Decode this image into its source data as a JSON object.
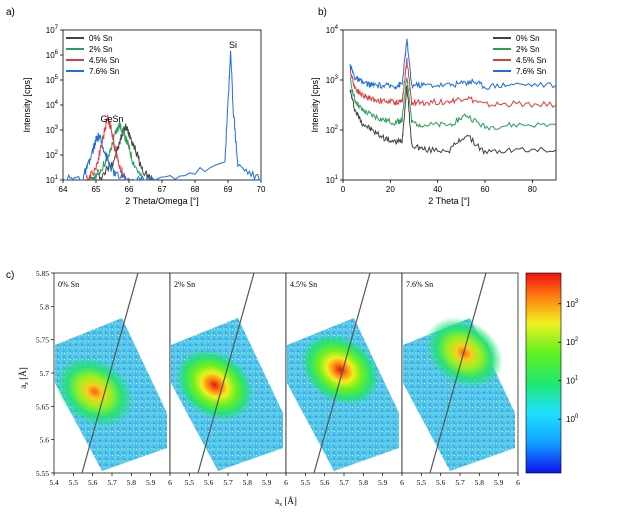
{
  "panel_labels": {
    "a": "a)",
    "b": "b)",
    "c": "c)"
  },
  "series_colors": [
    "#444444",
    "#2aa058",
    "#e03c3c",
    "#1f6fe0"
  ],
  "chart_data": [
    {
      "id": "a",
      "type": "line",
      "xlabel": "2 Theta/Omega [°]",
      "ylabel": "Intensity [cps]",
      "xlim": [
        64,
        70
      ],
      "ylim_log10": [
        1,
        7
      ],
      "yscale": "log",
      "x_ticks": [
        "64",
        "65",
        "66",
        "67",
        "68",
        "69",
        "70"
      ],
      "y_ticks": [
        {
          "base": "10",
          "exp": "1"
        },
        {
          "base": "10",
          "exp": "2"
        },
        {
          "base": "10",
          "exp": "3"
        },
        {
          "base": "10",
          "exp": "4"
        },
        {
          "base": "10",
          "exp": "5"
        },
        {
          "base": "10",
          "exp": "6"
        },
        {
          "base": "10",
          "exp": "7"
        }
      ],
      "legend": [
        "0% Sn",
        "2% Sn",
        "4.5% Sn",
        "7.6% Sn"
      ],
      "legend_position": "top-left",
      "annotations": [
        "GeSn",
        "Si"
      ],
      "series": [
        {
          "name": "0% Sn",
          "x": [
            64.8,
            65.2,
            65.5,
            65.7,
            65.8,
            65.9,
            66.0,
            66.2,
            66.4,
            66.7
          ],
          "log10_y": [
            1.0,
            1.2,
            1.7,
            2.4,
            2.9,
            3.1,
            2.9,
            2.2,
            1.4,
            1.0
          ]
        },
        {
          "name": "2% Sn",
          "x": [
            64.8,
            65.1,
            65.4,
            65.6,
            65.7,
            65.8,
            65.95,
            66.1,
            66.4
          ],
          "log10_y": [
            1.0,
            1.3,
            2.0,
            2.9,
            3.2,
            3.0,
            2.5,
            1.8,
            1.0
          ]
        },
        {
          "name": "4.5% Sn",
          "x": [
            64.7,
            65.0,
            65.2,
            65.35,
            65.45,
            65.55,
            65.7,
            65.9
          ],
          "log10_y": [
            1.0,
            1.5,
            2.6,
            3.5,
            3.1,
            2.4,
            1.6,
            1.0
          ]
        },
        {
          "name": "7.6% Sn",
          "x": [
            64.0,
            64.6,
            64.8,
            65.0,
            65.1,
            65.2,
            65.4,
            65.6,
            66.0,
            66.8,
            68.9,
            69.02,
            69.08,
            69.15,
            69.3,
            70.0
          ],
          "log10_y": [
            1.0,
            1.1,
            1.7,
            2.6,
            2.75,
            2.4,
            1.6,
            1.2,
            1.0,
            1.0,
            1.6,
            4.6,
            6.2,
            4.0,
            1.6,
            1.0
          ]
        }
      ]
    },
    {
      "id": "b",
      "type": "line",
      "xlabel": "2 Theta [°]",
      "ylabel": "Intensity [cps]",
      "xlim": [
        0,
        90
      ],
      "ylim_log10": [
        1,
        4
      ],
      "yscale": "log",
      "x_ticks": [
        "0",
        "20",
        "40",
        "60",
        "80"
      ],
      "y_ticks": [
        {
          "base": "10",
          "exp": "1"
        },
        {
          "base": "10",
          "exp": "2"
        },
        {
          "base": "10",
          "exp": "3"
        },
        {
          "base": "10",
          "exp": "4"
        }
      ],
      "legend": [
        "0% Sn",
        "2% Sn",
        "4.5% Sn",
        "7.6% Sn"
      ],
      "legend_position": "top-right",
      "series": [
        {
          "name": "0% Sn",
          "x": [
            3,
            5,
            8,
            12,
            17,
            22,
            25,
            27,
            29,
            35,
            45,
            52,
            60,
            72,
            90
          ],
          "log10_y": [
            2.8,
            2.4,
            2.15,
            2.0,
            1.85,
            1.75,
            1.8,
            2.9,
            1.7,
            1.6,
            1.6,
            1.9,
            1.55,
            1.6,
            1.6
          ]
        },
        {
          "name": "2% Sn",
          "x": [
            3,
            5,
            8,
            12,
            17,
            22,
            25,
            27,
            29,
            35,
            45,
            52,
            60,
            72,
            90
          ],
          "log10_y": [
            3.0,
            2.6,
            2.4,
            2.3,
            2.2,
            2.15,
            2.2,
            3.1,
            2.15,
            2.1,
            2.1,
            2.3,
            2.05,
            2.1,
            2.1
          ]
        },
        {
          "name": "4.5% Sn",
          "x": [
            3,
            5,
            8,
            12,
            17,
            22,
            25,
            27,
            29,
            35,
            45,
            52,
            60,
            72,
            90
          ],
          "log10_y": [
            3.2,
            2.85,
            2.7,
            2.62,
            2.58,
            2.55,
            2.58,
            3.4,
            2.55,
            2.55,
            2.57,
            2.65,
            2.5,
            2.52,
            2.5
          ]
        },
        {
          "name": "7.6% Sn",
          "x": [
            3,
            5,
            8,
            12,
            17,
            22,
            25,
            27,
            29,
            35,
            45,
            52,
            55,
            60,
            72,
            90
          ],
          "log10_y": [
            3.3,
            3.05,
            2.95,
            2.9,
            2.88,
            2.88,
            2.92,
            3.8,
            2.9,
            2.9,
            2.9,
            2.95,
            2.98,
            2.87,
            2.92,
            2.9
          ]
        }
      ]
    },
    {
      "id": "c",
      "type": "heatmap",
      "xlabel_base": "a",
      "xlabel_sub": "x",
      "xlabel_unit": " [Å]",
      "ylabel_base": "a",
      "ylabel_sub": "z",
      "ylabel_unit": " [Å]",
      "colorbar_scale": "log",
      "colorbar_ticks": [
        {
          "base": "10",
          "exp": "3"
        },
        {
          "base": "10",
          "exp": "2"
        },
        {
          "base": "10",
          "exp": "1"
        },
        {
          "base": "10",
          "exp": "0"
        }
      ],
      "y_ticks": [
        "5.85",
        "5.8",
        "5.75",
        "5.7",
        "5.65",
        "5.6",
        "5.55"
      ],
      "ylim": [
        5.55,
        5.85
      ],
      "panels": [
        {
          "label": "0% Sn",
          "x_ticks": [
            "5.4",
            "5.5",
            "5.6",
            "5.7",
            "5.8",
            "5.9"
          ],
          "xlim": [
            5.4,
            6.0
          ],
          "peak_center": [
            5.61,
            5.672
          ],
          "peak_log10_intensity": 3.0
        },
        {
          "label": "2% Sn",
          "x_ticks": [
            "6",
            "5.5",
            "5.6",
            "5.7",
            "5.8",
            "5.9"
          ],
          "xlim": [
            5.4,
            6.0
          ],
          "peak_center": [
            5.63,
            5.682
          ],
          "peak_log10_intensity": 3.4
        },
        {
          "label": "4.5% Sn",
          "x_ticks": [
            "6",
            "5.5",
            "5.6",
            "5.7",
            "5.8",
            "5.9"
          ],
          "xlim": [
            5.4,
            6.0
          ],
          "peak_center": [
            5.68,
            5.705
          ],
          "peak_log10_intensity": 3.7
        },
        {
          "label": "7.6% Sn",
          "x_ticks": [
            "6",
            "5.5",
            "5.6",
            "5.7",
            "5.8",
            "5.9",
            "6"
          ],
          "xlim": [
            5.4,
            6.0
          ],
          "peak_center": [
            5.72,
            5.73
          ],
          "peak_log10_intensity": 3.1
        }
      ]
    }
  ]
}
